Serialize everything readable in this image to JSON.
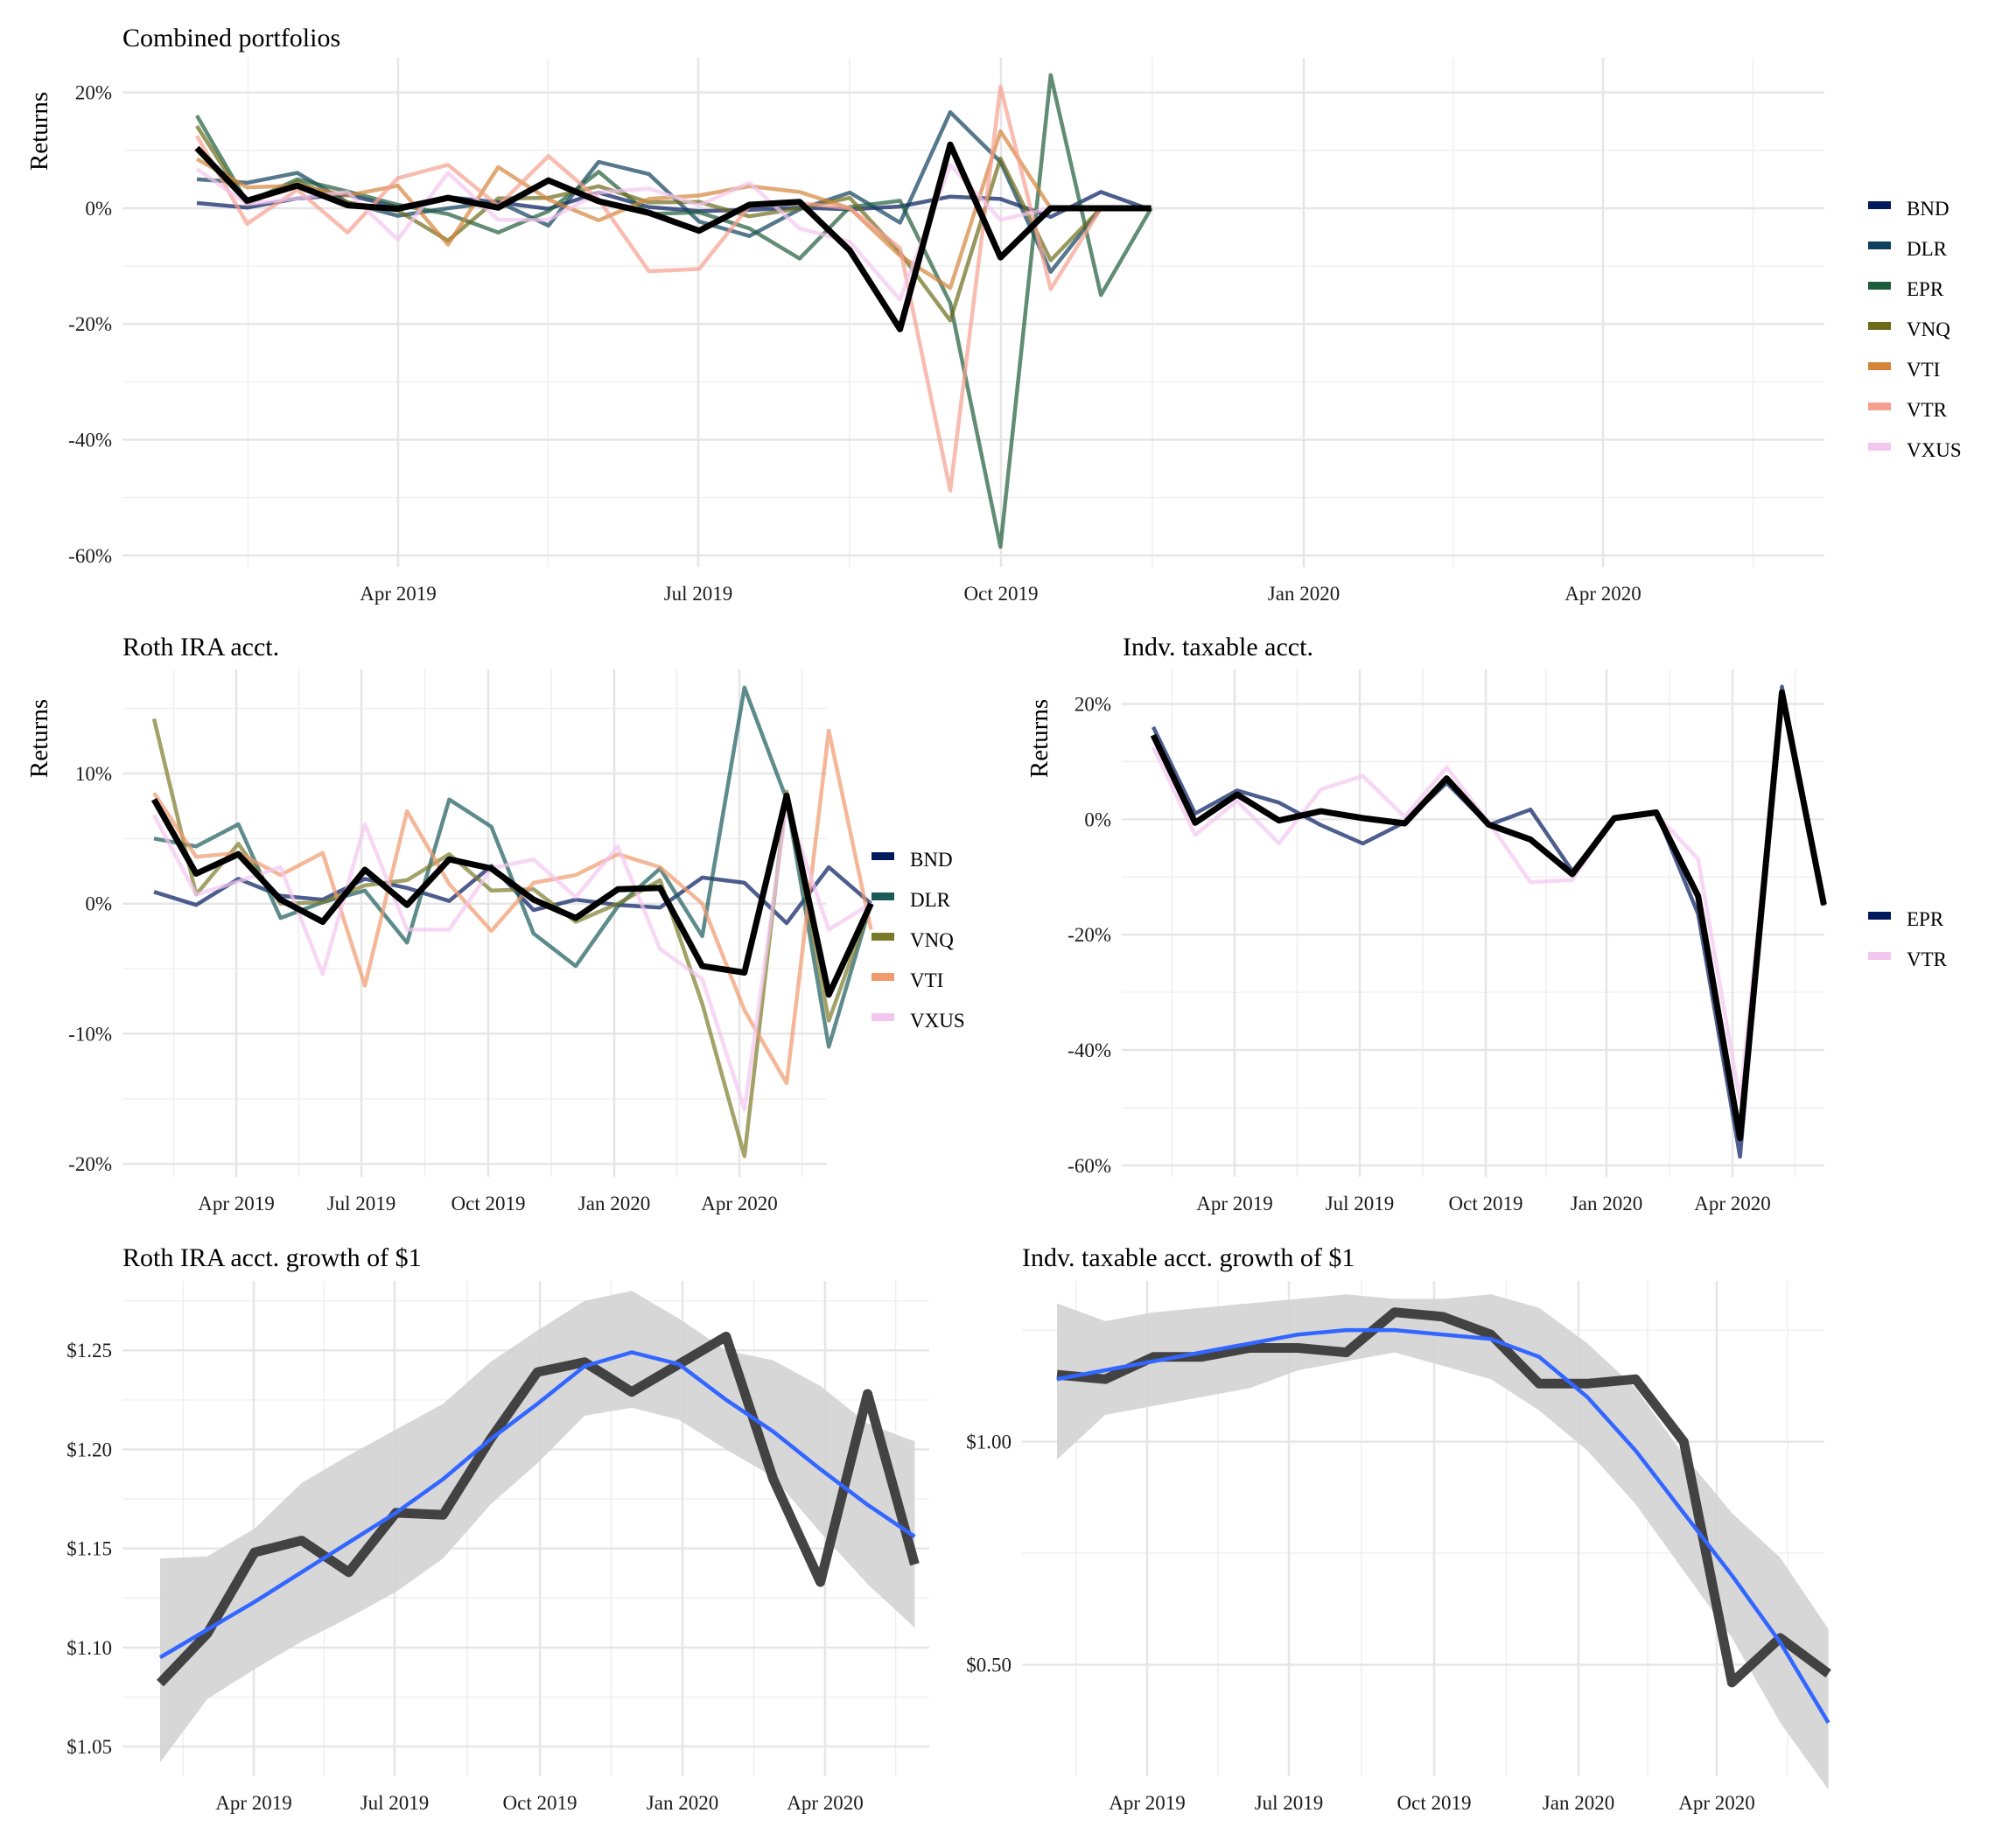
{
  "chart_data": [
    {
      "id": "combined",
      "type": "line",
      "title": "Combined portfolios",
      "xlabel": "",
      "ylabel": "Returns",
      "x_ticks": [
        "Apr 2019",
        "Jul 2019",
        "Oct 2019",
        "Jan 2020",
        "Apr 2020"
      ],
      "y_ticks": [
        "-60%",
        "-40%",
        "-20%",
        "0%",
        "20%"
      ],
      "ylim": [
        -62,
        26
      ],
      "legend": [
        "BND",
        "DLR",
        "EPR",
        "VNQ",
        "VTI",
        "VTR",
        "VXUS"
      ],
      "series": [
        {
          "name": "BND",
          "color": "#011a5e",
          "values": [
            0.9,
            0.1,
            1.7,
            2.3,
            0.2,
            1.9,
            1.0,
            -0.1,
            2.7,
            0.2,
            -0.5,
            -0.3,
            0.1,
            -0.2,
            0.3,
            2.0,
            1.6,
            -1.5,
            2.8,
            -0.3
          ]
        },
        {
          "name": "DLR",
          "color": "#0e3f5c",
          "values": [
            5.0,
            4.4,
            6.1,
            1.0,
            -1.3,
            0.0,
            1.1,
            -3.0,
            8.0,
            5.9,
            -2.3,
            -4.8,
            -0.2,
            2.7,
            -2.5,
            16.6,
            8.0,
            -11.0,
            0,
            0
          ]
        },
        {
          "name": "EPR",
          "color": "#1e5c3a",
          "values": [
            16.0,
            1.0,
            5.0,
            2.9,
            0.6,
            -1.0,
            -4.2,
            -0.5,
            6.3,
            -1.0,
            -0.7,
            -3.5,
            -8.7,
            0.2,
            1.3,
            -16.4,
            -58.5,
            23.0,
            -15.0,
            0
          ]
        },
        {
          "name": "VNQ",
          "color": "#6b6b1a",
          "values": [
            14.2,
            0.7,
            4.6,
            1.0,
            -0.4,
            -5.6,
            1.7,
            1.8,
            3.8,
            1.0,
            1.1,
            -1.4,
            0.0,
            1.8,
            -7.7,
            -19.4,
            8.6,
            -9.0,
            0,
            0
          ]
        },
        {
          "name": "VTI",
          "color": "#d4843a",
          "values": [
            8.5,
            3.6,
            3.9,
            2.2,
            3.9,
            -6.3,
            7.1,
            1.5,
            -2.1,
            1.6,
            2.2,
            3.8,
            2.8,
            0.0,
            -8.2,
            -13.8,
            13.3,
            0.0,
            0,
            0
          ]
        },
        {
          "name": "VTR",
          "color": "#f5a08e",
          "values": [
            12.5,
            -2.7,
            3.2,
            -4.2,
            5.2,
            7.5,
            0.4,
            9.0,
            1.5,
            -10.9,
            -10.5,
            0.4,
            0.9,
            0.0,
            -6.9,
            -48.8,
            21.0,
            -14.0,
            0,
            0
          ]
        },
        {
          "name": "VXUS",
          "color": "#f3c6f0",
          "values": [
            6.8,
            0.7,
            1.7,
            2.8,
            -5.4,
            6.1,
            -2.0,
            -2.0,
            2.7,
            3.4,
            0.5,
            4.4,
            -3.5,
            -5.8,
            -15.8,
            7.5,
            -2.0,
            0,
            0,
            0
          ]
        },
        {
          "name": "Portfolio",
          "color": "#000000",
          "values": [
            10.4,
            1.3,
            3.9,
            0.5,
            -0.1,
            1.8,
            0.1,
            4.8,
            1.2,
            -0.8,
            -3.9,
            0.6,
            1.1,
            -7.3,
            -20.9,
            11.0,
            -8.5,
            0,
            0,
            0
          ]
        }
      ]
    },
    {
      "id": "roth",
      "type": "line",
      "title": "Roth IRA acct.",
      "xlabel": "",
      "ylabel": "Returns",
      "x_ticks": [
        "Apr 2019",
        "Jul 2019",
        "Oct 2019",
        "Jan 2020",
        "Apr 2020"
      ],
      "y_ticks": [
        "-20%",
        "-10%",
        "0%",
        "10%"
      ],
      "ylim": [
        -21,
        18
      ],
      "legend": [
        "BND",
        "DLR",
        "VNQ",
        "VTI",
        "VXUS"
      ],
      "series": [
        {
          "name": "BND",
          "color": "#011a5e",
          "values": [
            0.9,
            -0.1,
            1.9,
            0.6,
            0.3,
            1.9,
            1.2,
            0.2,
            2.9,
            -0.5,
            0.3,
            -0.1,
            -0.3,
            2.0,
            1.6,
            -1.5,
            2.8,
            0.0
          ]
        },
        {
          "name": "DLR",
          "color": "#1a5a5a",
          "values": [
            5.0,
            4.4,
            6.1,
            -1.1,
            0.1,
            1.0,
            -3.0,
            8.0,
            5.9,
            -2.3,
            -4.8,
            -0.2,
            2.7,
            -2.5,
            16.6,
            8.0,
            -11.0,
            0
          ]
        },
        {
          "name": "VNQ",
          "color": "#7a7a2a",
          "values": [
            14.2,
            0.7,
            4.6,
            0.0,
            0.1,
            1.4,
            1.8,
            3.8,
            1.0,
            1.1,
            -1.4,
            0.0,
            1.8,
            -7.7,
            -19.4,
            8.6,
            -9.0,
            0
          ]
        },
        {
          "name": "VTI",
          "color": "#f09a6e",
          "values": [
            8.5,
            3.6,
            3.9,
            2.2,
            3.9,
            -6.3,
            7.1,
            1.5,
            -2.1,
            1.6,
            2.2,
            3.8,
            2.8,
            0.0,
            -8.2,
            -13.8,
            13.3,
            -2.0
          ]
        },
        {
          "name": "VXUS",
          "color": "#f3c6f0",
          "values": [
            6.8,
            0.7,
            1.7,
            2.8,
            -5.4,
            6.1,
            -2.0,
            -2.0,
            2.7,
            3.4,
            0.5,
            4.4,
            -3.5,
            -5.8,
            -15.8,
            7.5,
            -2.0,
            0
          ]
        },
        {
          "name": "Portfolio",
          "color": "#000000",
          "values": [
            8.0,
            2.3,
            3.8,
            0.3,
            -1.4,
            2.6,
            -0.1,
            3.4,
            2.7,
            0.3,
            -1.1,
            1.1,
            1.2,
            -4.8,
            -5.3,
            8.3,
            -7.0,
            0
          ]
        }
      ]
    },
    {
      "id": "taxable",
      "type": "line",
      "title": "Indv. taxable acct.",
      "xlabel": "",
      "ylabel": "Returns",
      "x_ticks": [
        "Apr 2019",
        "Jul 2019",
        "Oct 2019",
        "Jan 2020",
        "Apr 2020"
      ],
      "y_ticks": [
        "-60%",
        "-40%",
        "-20%",
        "0%",
        "20%"
      ],
      "ylim": [
        -62,
        26
      ],
      "legend": [
        "EPR",
        "VTR"
      ],
      "series": [
        {
          "name": "EPR",
          "color": "#011a5e",
          "values": [
            16.0,
            1.0,
            5.0,
            2.9,
            -1.0,
            -4.2,
            -0.5,
            6.3,
            -1.0,
            1.7,
            -9.0,
            0.2,
            1.3,
            -16.4,
            -58.5,
            23.0,
            -15.0
          ]
        },
        {
          "name": "VTR",
          "color": "#f3c6f0",
          "values": [
            12.5,
            -2.7,
            3.2,
            -4.2,
            5.2,
            7.5,
            0.4,
            9.0,
            -0.5,
            -10.9,
            -10.5,
            0.4,
            0.9,
            -6.9,
            -48.8,
            21.0,
            -14.0
          ]
        },
        {
          "name": "Portfolio",
          "color": "#000000",
          "values": [
            14.6,
            -0.6,
            4.3,
            -0.2,
            1.4,
            0.2,
            -0.7,
            7.1,
            -0.9,
            -3.5,
            -9.5,
            0.2,
            1.2,
            -13.3,
            -55.3,
            22.0,
            -14.8
          ]
        }
      ]
    },
    {
      "id": "roth_growth",
      "type": "line",
      "title": "Roth IRA acct. growth of $1",
      "xlabel": "",
      "ylabel": "",
      "x_ticks": [
        "Apr 2019",
        "Jul 2019",
        "Oct 2019",
        "Jan 2020",
        "Apr 2020"
      ],
      "y_ticks": [
        "$1.05",
        "$1.10",
        "$1.15",
        "$1.20",
        "$1.25"
      ],
      "ylim": [
        1.035,
        1.285
      ],
      "series": [
        {
          "name": "Growth",
          "color": "#3a3a3a",
          "values": [
            1.082,
            1.107,
            1.148,
            1.154,
            1.138,
            1.168,
            1.167,
            1.205,
            1.239,
            1.244,
            1.229,
            1.243,
            1.257,
            1.185,
            1.133,
            1.228,
            1.142
          ]
        },
        {
          "name": "Smooth",
          "color": "#3366ff",
          "values": [
            1.095,
            1.109,
            1.123,
            1.138,
            1.153,
            1.168,
            1.185,
            1.205,
            1.223,
            1.242,
            1.249,
            1.243,
            1.225,
            1.209,
            1.19,
            1.172,
            1.156
          ]
        },
        {
          "name": "Upper",
          "color": "#d3d3d3",
          "values": [
            1.145,
            1.146,
            1.16,
            1.183,
            1.197,
            1.21,
            1.223,
            1.244,
            1.26,
            1.275,
            1.28,
            1.266,
            1.25,
            1.245,
            1.232,
            1.213,
            1.204
          ]
        },
        {
          "name": "Lower",
          "color": "#d3d3d3",
          "values": [
            1.042,
            1.074,
            1.089,
            1.103,
            1.115,
            1.128,
            1.145,
            1.172,
            1.193,
            1.217,
            1.221,
            1.215,
            1.2,
            1.186,
            1.158,
            1.132,
            1.11
          ]
        }
      ]
    },
    {
      "id": "taxable_growth",
      "type": "line",
      "title": "Indv. taxable acct. growth of $1",
      "xlabel": "",
      "ylabel": "",
      "x_ticks": [
        "Apr 2019",
        "Jul 2019",
        "Oct 2019",
        "Jan 2020",
        "Apr 2020"
      ],
      "y_ticks": [
        "$0.50",
        "$1.00"
      ],
      "ylim": [
        0.25,
        1.36
      ],
      "series": [
        {
          "name": "Growth",
          "color": "#3a3a3a",
          "values": [
            1.15,
            1.14,
            1.19,
            1.19,
            1.21,
            1.21,
            1.2,
            1.29,
            1.28,
            1.24,
            1.13,
            1.13,
            1.14,
            1.0,
            0.46,
            0.56,
            0.48
          ]
        },
        {
          "name": "Smooth",
          "color": "#3366ff",
          "values": [
            1.14,
            1.16,
            1.18,
            1.2,
            1.22,
            1.24,
            1.25,
            1.25,
            1.24,
            1.23,
            1.19,
            1.1,
            0.98,
            0.84,
            0.7,
            0.55,
            0.37
          ]
        },
        {
          "name": "Upper",
          "color": "#d3d3d3",
          "values": [
            1.31,
            1.27,
            1.29,
            1.3,
            1.31,
            1.32,
            1.33,
            1.32,
            1.32,
            1.33,
            1.3,
            1.22,
            1.12,
            0.97,
            0.84,
            0.74,
            0.58
          ]
        },
        {
          "name": "Lower",
          "color": "#d3d3d3",
          "values": [
            0.96,
            1.06,
            1.08,
            1.1,
            1.12,
            1.16,
            1.18,
            1.2,
            1.17,
            1.14,
            1.07,
            0.98,
            0.86,
            0.71,
            0.56,
            0.37,
            0.22
          ]
        }
      ]
    }
  ]
}
